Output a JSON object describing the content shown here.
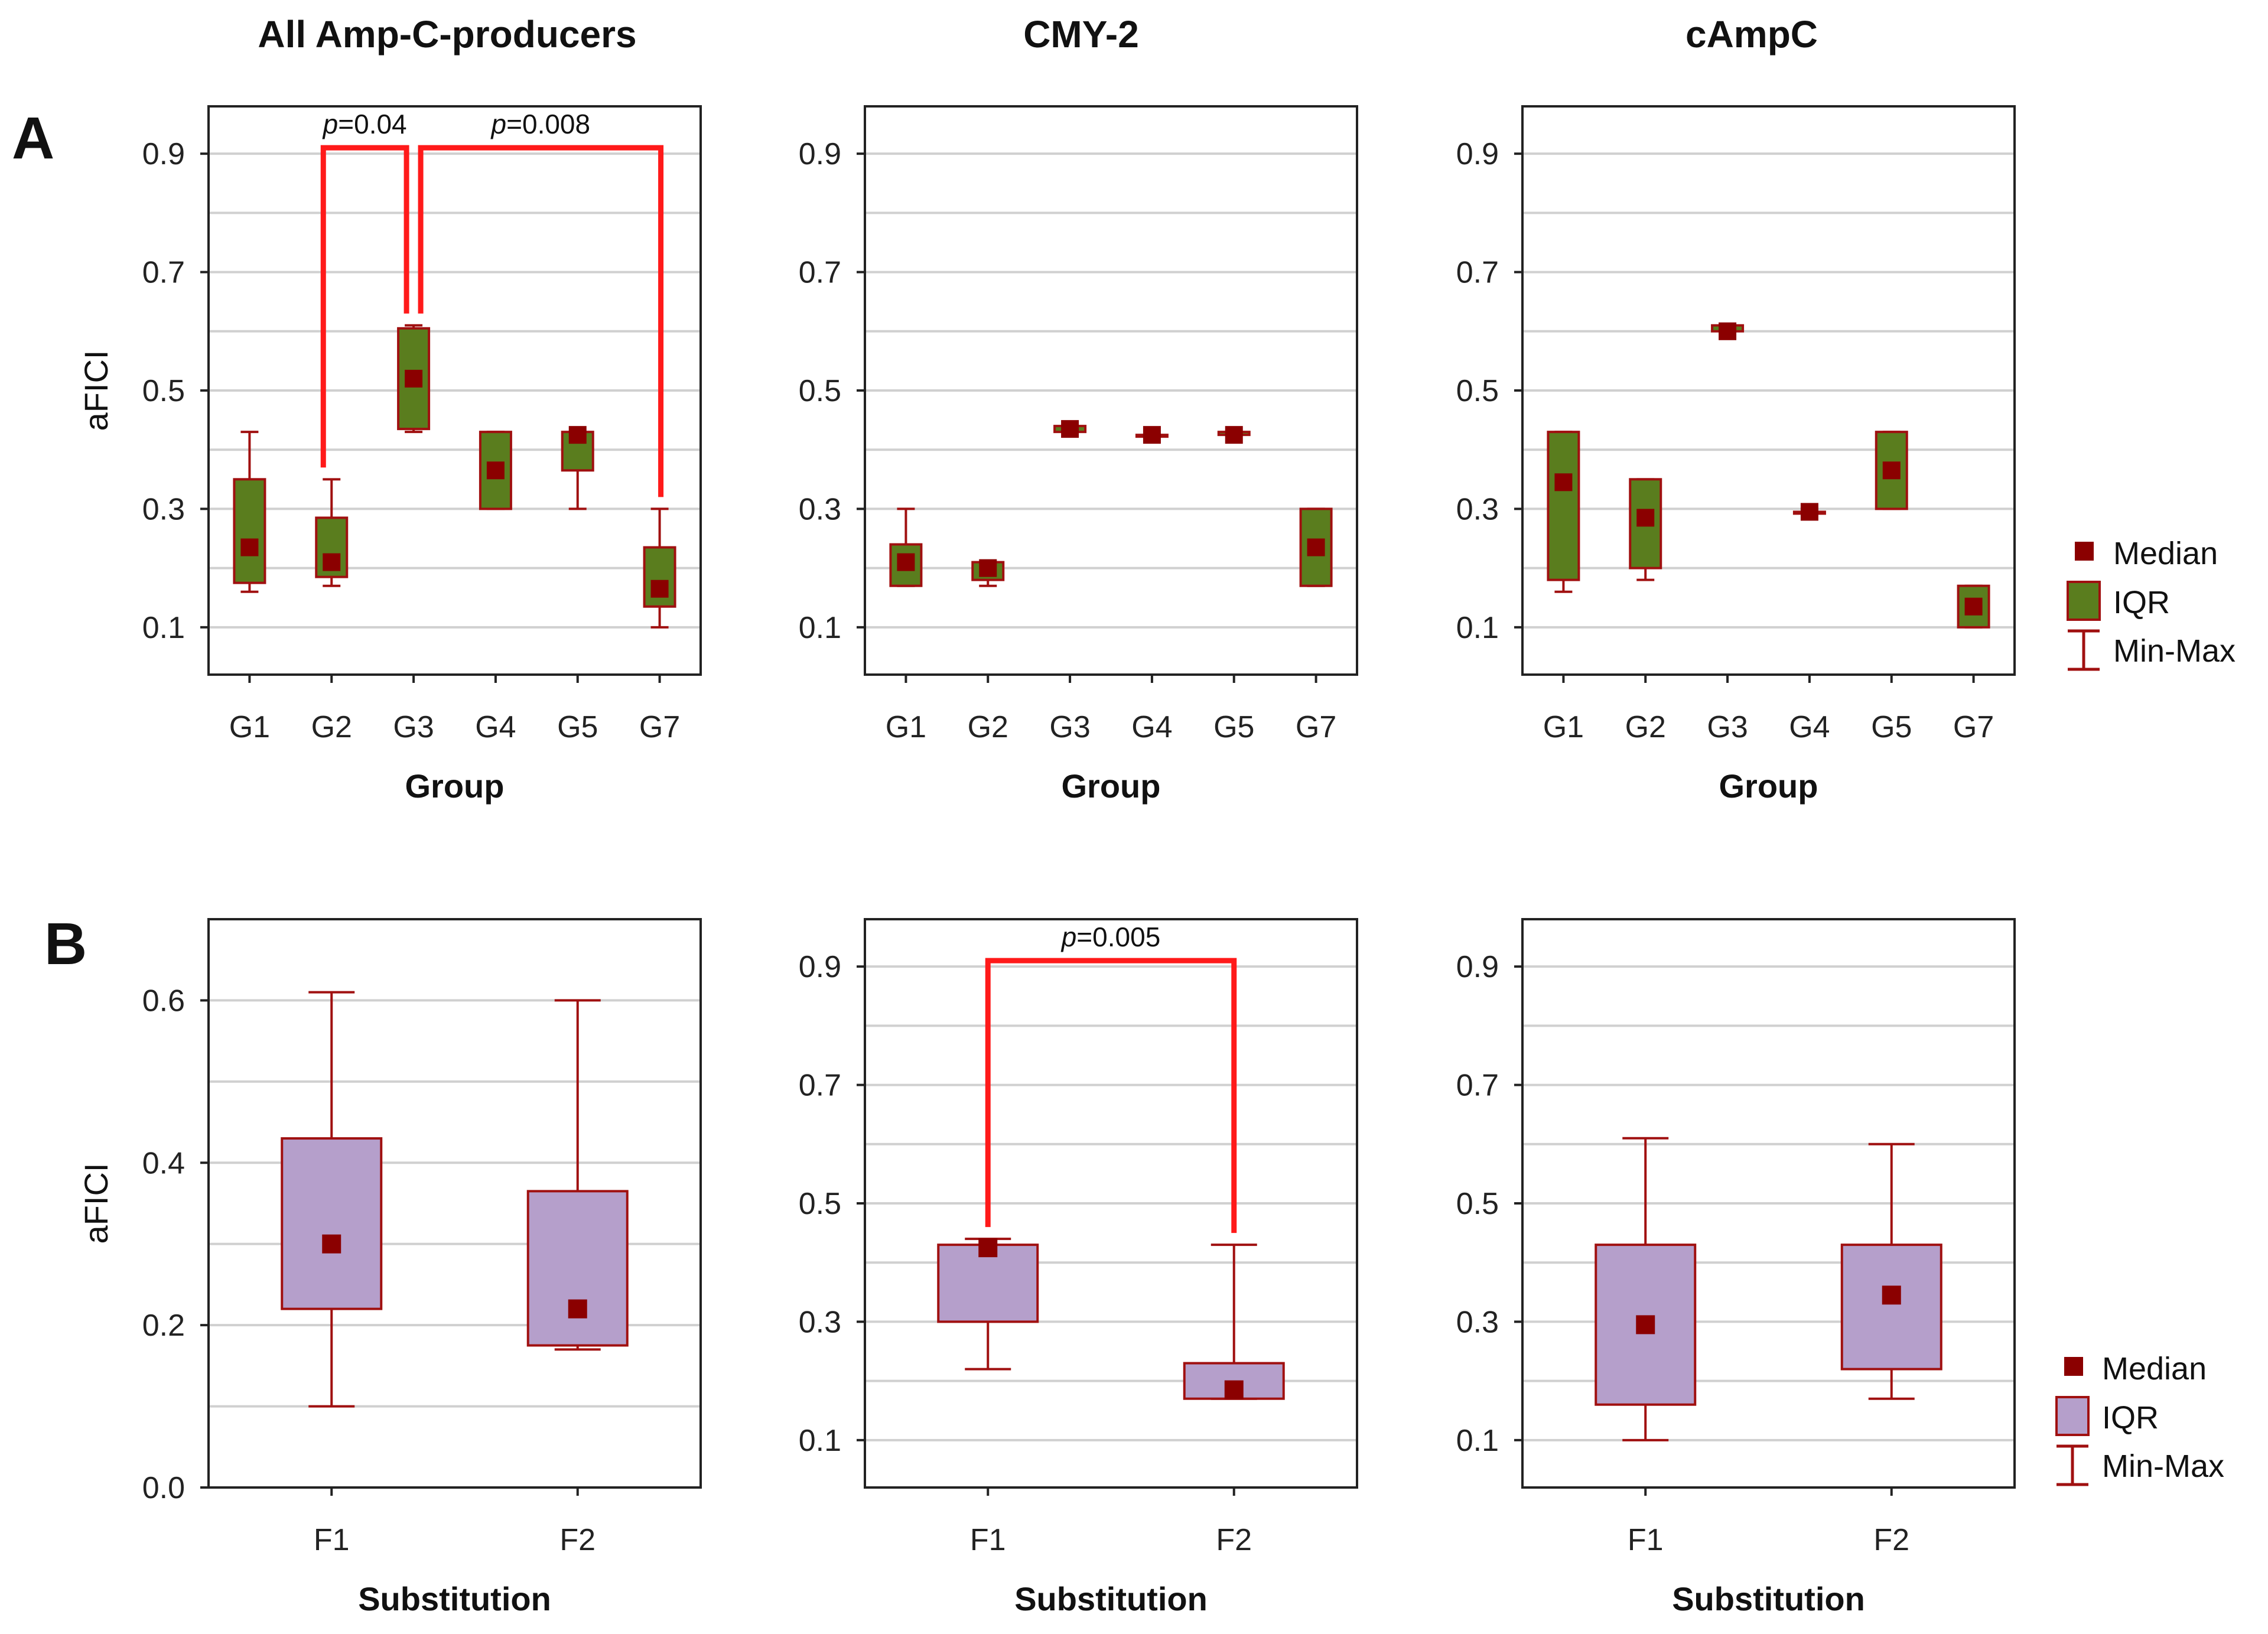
{
  "figure": {
    "column_titles": [
      "All Amp-C-producers",
      "CMY-2",
      "cAmpC"
    ],
    "row_labels": [
      "A",
      "B"
    ]
  },
  "legend": {
    "median_label": "Median",
    "iqr_label": "IQR",
    "minmax_label": "Min-Max"
  },
  "colors": {
    "groupFill": "#5a7d1e",
    "substitutionFill": "#b59fcb",
    "boxStroke": "#a01010",
    "median": "#8b0000",
    "significance": "#ff1a1a",
    "grid": "#d0d0d0"
  },
  "chart_data": [
    {
      "type": "box",
      "row": 0,
      "col": 0,
      "fill": "groupFill",
      "title": "All Amp-C-producers",
      "xlabel": "Group",
      "ylabel": "aFICI",
      "ylim": [
        0.02,
        0.98
      ],
      "yticks": [
        0.1,
        0.3,
        0.5,
        0.7,
        0.9
      ],
      "ytick_labels": [
        "0.1",
        "0.3",
        "0.5",
        "0.7",
        "0.9"
      ],
      "categories": [
        "G1",
        "G2",
        "G3",
        "G4",
        "G5",
        "G7"
      ],
      "boxes": [
        {
          "min": 0.16,
          "q1": 0.175,
          "median": 0.235,
          "q3": 0.35,
          "max": 0.43
        },
        {
          "min": 0.17,
          "q1": 0.185,
          "median": 0.21,
          "q3": 0.285,
          "max": 0.35
        },
        {
          "min": 0.43,
          "q1": 0.435,
          "median": 0.52,
          "q3": 0.605,
          "max": 0.61
        },
        {
          "min": 0.3,
          "q1": 0.3,
          "median": 0.365,
          "q3": 0.43,
          "max": 0.43
        },
        {
          "min": 0.3,
          "q1": 0.365,
          "median": 0.425,
          "q3": 0.43,
          "max": 0.43
        },
        {
          "min": 0.1,
          "q1": 0.135,
          "median": 0.165,
          "q3": 0.235,
          "max": 0.3
        }
      ],
      "significance": [
        {
          "from": 1,
          "to": 2,
          "label_prefix": "p",
          "label_value": "=0.04",
          "y": 0.91
        },
        {
          "from": 2,
          "to": 5,
          "label_prefix": "p",
          "label_value": "=0.008",
          "y": 0.91
        }
      ]
    },
    {
      "type": "box",
      "row": 0,
      "col": 1,
      "fill": "groupFill",
      "title": "CMY-2",
      "xlabel": "Group",
      "ylabel": "",
      "ylim": [
        0.02,
        0.98
      ],
      "yticks": [
        0.1,
        0.3,
        0.5,
        0.7,
        0.9
      ],
      "ytick_labels": [
        "0.1",
        "0.3",
        "0.5",
        "0.7",
        "0.9"
      ],
      "categories": [
        "G1",
        "G2",
        "G3",
        "G4",
        "G5",
        "G7"
      ],
      "boxes": [
        {
          "min": 0.17,
          "q1": 0.17,
          "median": 0.21,
          "q3": 0.24,
          "max": 0.3
        },
        {
          "min": 0.17,
          "q1": 0.18,
          "median": 0.2,
          "q3": 0.21,
          "max": 0.21
        },
        {
          "min": 0.43,
          "q1": 0.43,
          "median": 0.435,
          "q3": 0.44,
          "max": 0.44
        },
        {
          "min": 0.425,
          "q1": 0.425,
          "median": 0.425,
          "q3": 0.425,
          "max": 0.425
        },
        {
          "min": 0.425,
          "q1": 0.425,
          "median": 0.425,
          "q3": 0.43,
          "max": 0.43
        },
        {
          "min": 0.17,
          "q1": 0.17,
          "median": 0.235,
          "q3": 0.3,
          "max": 0.3
        }
      ],
      "significance": []
    },
    {
      "type": "box",
      "row": 0,
      "col": 2,
      "fill": "groupFill",
      "title": "cAmpC",
      "xlabel": "Group",
      "ylabel": "",
      "ylim": [
        0.02,
        0.98
      ],
      "yticks": [
        0.1,
        0.3,
        0.5,
        0.7,
        0.9
      ],
      "ytick_labels": [
        "0.1",
        "0.3",
        "0.5",
        "0.7",
        "0.9"
      ],
      "categories": [
        "G1",
        "G2",
        "G3",
        "G4",
        "G5",
        "G7"
      ],
      "boxes": [
        {
          "min": 0.16,
          "q1": 0.18,
          "median": 0.345,
          "q3": 0.43,
          "max": 0.43
        },
        {
          "min": 0.18,
          "q1": 0.2,
          "median": 0.285,
          "q3": 0.35,
          "max": 0.35
        },
        {
          "min": 0.6,
          "q1": 0.6,
          "median": 0.6,
          "q3": 0.61,
          "max": 0.61
        },
        {
          "min": 0.295,
          "q1": 0.295,
          "median": 0.295,
          "q3": 0.295,
          "max": 0.295
        },
        {
          "min": 0.3,
          "q1": 0.3,
          "median": 0.365,
          "q3": 0.43,
          "max": 0.43
        },
        {
          "min": 0.1,
          "q1": 0.1,
          "median": 0.135,
          "q3": 0.17,
          "max": 0.17
        }
      ],
      "significance": []
    },
    {
      "type": "box",
      "row": 1,
      "col": 0,
      "fill": "substitutionFill",
      "title": "All Amp-C-producers",
      "xlabel": "Substitution",
      "ylabel": "aFICI",
      "ylim": [
        0.0,
        0.7
      ],
      "yticks": [
        0.0,
        0.2,
        0.4,
        0.6
      ],
      "ytick_labels": [
        "0.0",
        "0.2",
        "0.4",
        "0.6"
      ],
      "minor_grid": [
        0.1,
        0.3,
        0.5
      ],
      "categories": [
        "F1",
        "F2"
      ],
      "boxes": [
        {
          "min": 0.1,
          "q1": 0.22,
          "median": 0.3,
          "q3": 0.43,
          "max": 0.61
        },
        {
          "min": 0.17,
          "q1": 0.175,
          "median": 0.22,
          "q3": 0.365,
          "max": 0.6
        }
      ],
      "significance": []
    },
    {
      "type": "box",
      "row": 1,
      "col": 1,
      "fill": "substitutionFill",
      "title": "CMY-2",
      "xlabel": "Substitution",
      "ylabel": "",
      "ylim": [
        0.02,
        0.98
      ],
      "yticks": [
        0.1,
        0.3,
        0.5,
        0.7,
        0.9
      ],
      "ytick_labels": [
        "0.1",
        "0.3",
        "0.5",
        "0.7",
        "0.9"
      ],
      "categories": [
        "F1",
        "F2"
      ],
      "boxes": [
        {
          "min": 0.22,
          "q1": 0.3,
          "median": 0.425,
          "q3": 0.43,
          "max": 0.44
        },
        {
          "min": 0.17,
          "q1": 0.17,
          "median": 0.185,
          "q3": 0.23,
          "max": 0.43
        }
      ],
      "significance": [
        {
          "from": 0,
          "to": 1,
          "label_prefix": "p",
          "label_value": "=0.005",
          "y": 0.91
        }
      ]
    },
    {
      "type": "box",
      "row": 1,
      "col": 2,
      "fill": "substitutionFill",
      "title": "cAmpC",
      "xlabel": "Substitution",
      "ylabel": "",
      "ylim": [
        0.02,
        0.98
      ],
      "yticks": [
        0.1,
        0.3,
        0.5,
        0.7,
        0.9
      ],
      "ytick_labels": [
        "0.1",
        "0.3",
        "0.5",
        "0.7",
        "0.9"
      ],
      "categories": [
        "F1",
        "F2"
      ],
      "boxes": [
        {
          "min": 0.1,
          "q1": 0.16,
          "median": 0.295,
          "q3": 0.43,
          "max": 0.61
        },
        {
          "min": 0.17,
          "q1": 0.22,
          "median": 0.345,
          "q3": 0.43,
          "max": 0.6
        }
      ],
      "significance": []
    }
  ]
}
